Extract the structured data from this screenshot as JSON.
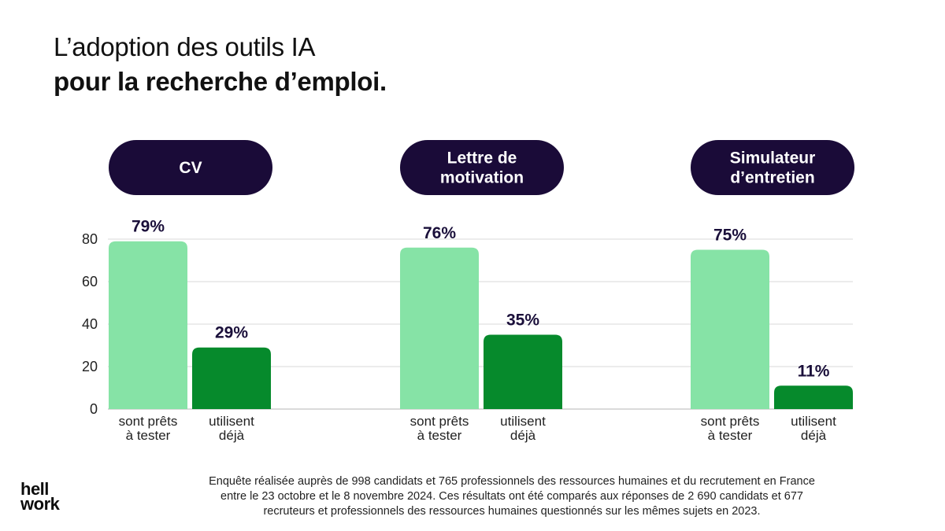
{
  "title": {
    "line1": "L’adoption des outils IA",
    "line2": "pour la recherche d’emploi."
  },
  "colors": {
    "ready": "#86e3a6",
    "using": "#068a2c",
    "pill": "#1a0b38",
    "grid": "#d9d9d9",
    "value_label": "#1a0f3a"
  },
  "chart_data": {
    "type": "bar",
    "ylim": [
      0,
      80
    ],
    "yticks": [
      0,
      20,
      40,
      60,
      80
    ],
    "grid": true,
    "groups": [
      {
        "name_lines": [
          "CV"
        ],
        "bars": [
          {
            "label_lines": [
              "sont prêts",
              "à tester"
            ],
            "value": 79,
            "value_label": "79%",
            "series": "ready"
          },
          {
            "label_lines": [
              "utilisent",
              "déjà"
            ],
            "value": 29,
            "value_label": "29%",
            "series": "using"
          }
        ]
      },
      {
        "name_lines": [
          "Lettre de",
          "motivation"
        ],
        "bars": [
          {
            "label_lines": [
              "sont prêts",
              "à tester"
            ],
            "value": 76,
            "value_label": "76%",
            "series": "ready"
          },
          {
            "label_lines": [
              "utilisent",
              "déjà"
            ],
            "value": 35,
            "value_label": "35%",
            "series": "using"
          }
        ]
      },
      {
        "name_lines": [
          "Simulateur",
          "d’entretien"
        ],
        "bars": [
          {
            "label_lines": [
              "sont prêts",
              "à tester"
            ],
            "value": 75,
            "value_label": "75%",
            "series": "ready"
          },
          {
            "label_lines": [
              "utilisent",
              "déjà"
            ],
            "value": 11,
            "value_label": "11%",
            "series": "using"
          }
        ]
      }
    ]
  },
  "footnote": {
    "line1": "Enquête réalisée auprès de 998 candidats et 765 professionnels des ressources humaines et du recrutement en France",
    "line2": "entre le 23 octobre et le 8 novembre 2024. Ces résultats ont été comparés aux réponses de 2 690 candidats et 677",
    "line3": "recruteurs et professionnels des ressources humaines questionnés sur les mêmes sujets en 2023."
  },
  "logo": {
    "line1": "hell",
    "line2_a": "w",
    "line2_b": "rk"
  }
}
